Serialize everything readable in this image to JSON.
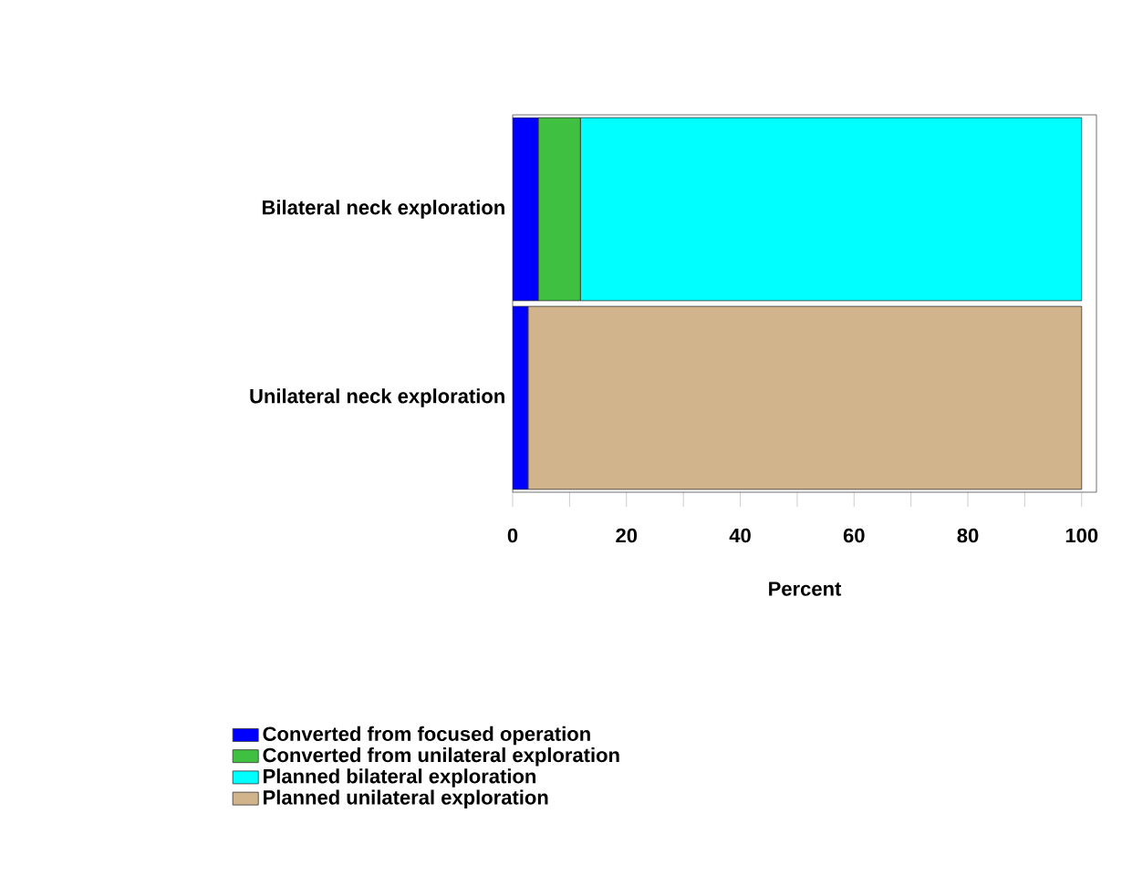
{
  "chart_data": {
    "type": "bar",
    "orientation": "horizontal",
    "stacked": true,
    "xlabel": "Percent",
    "categories": [
      "Bilateral neck exploration",
      "Unilateral neck exploration"
    ],
    "series": [
      {
        "name": "Converted from focused operation",
        "color": "#0000ff",
        "values": [
          4.5,
          2.7
        ]
      },
      {
        "name": "Converted from unilateral exploration",
        "color": "#40c040",
        "values": [
          7.4,
          0
        ]
      },
      {
        "name": "Planned bilateral exploration",
        "color": "#00ffff",
        "values": [
          88.1,
          0
        ]
      },
      {
        "name": "Planned unilateral exploration",
        "color": "#d2b48c",
        "values": [
          0,
          97.3
        ]
      }
    ],
    "xlim": [
      0,
      102.6
    ],
    "xticks": [
      0,
      {
        "value": 10,
        "label": null
      },
      20,
      {
        "value": 30,
        "label": null
      },
      40,
      {
        "value": 50,
        "label": null
      },
      60,
      {
        "value": 70,
        "label": null
      },
      80,
      {
        "value": 90,
        "label": null
      },
      100
    ],
    "grid": false,
    "legend": "bottom"
  }
}
